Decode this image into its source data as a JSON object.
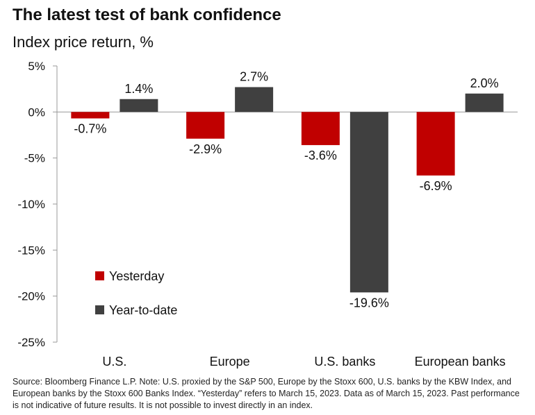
{
  "title": "The latest test of bank confidence",
  "subtitle": "Index price return, %",
  "footnote": "Source: Bloomberg Finance L.P. Note: U.S. proxied by the S&P 500, Europe by the Stoxx 600, U.S. banks by the KBW Index, and European banks by the Stoxx 600 Banks Index. “Yesterday” refers to March 15, 2023. Data as of March 15, 2023. Past performance is not indicative of future results. It is not possible to invest directly in an index.",
  "colors": {
    "yesterday": "#c00000",
    "ytd": "#404040",
    "axis": "#999999"
  },
  "chart_data": {
    "type": "bar",
    "categories": [
      "U.S.",
      "Europe",
      "U.S. banks",
      "European banks"
    ],
    "series": [
      {
        "name": "Yesterday",
        "values": [
          -0.7,
          -2.9,
          -3.6,
          -6.9
        ],
        "labels": [
          "-0.7%",
          "-2.9%",
          "-3.6%",
          "-6.9%"
        ]
      },
      {
        "name": "Year-to-date",
        "values": [
          1.4,
          2.7,
          -19.6,
          2.0
        ],
        "labels": [
          "1.4%",
          "2.7%",
          "-19.6%",
          "2.0%"
        ]
      }
    ],
    "yticks": [
      5,
      0,
      -5,
      -10,
      -15,
      -20,
      -25
    ],
    "ytick_labels": [
      "5%",
      "0%",
      "-5%",
      "-10%",
      "-15%",
      "-20%",
      "-25%"
    ],
    "ylim": [
      -25,
      5
    ],
    "grid": false,
    "legend": "lower-left"
  }
}
